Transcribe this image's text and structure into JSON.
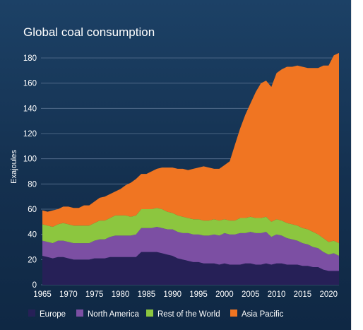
{
  "chart_data": {
    "type": "area",
    "stacked": true,
    "title": "Global coal consumption",
    "ylabel": "Exajoules",
    "xlabel": "",
    "ylim": [
      0,
      180
    ],
    "y_ticks": [
      0,
      20,
      40,
      60,
      80,
      100,
      120,
      140,
      160,
      180
    ],
    "x_ticks": [
      1965,
      1970,
      1975,
      1980,
      1985,
      1990,
      1995,
      2000,
      2005,
      2010,
      2015,
      2020
    ],
    "grid": "horizontal",
    "legend_position": "bottom",
    "x": [
      1965,
      1966,
      1967,
      1968,
      1969,
      1970,
      1971,
      1972,
      1973,
      1974,
      1975,
      1976,
      1977,
      1978,
      1979,
      1980,
      1981,
      1982,
      1983,
      1984,
      1985,
      1986,
      1987,
      1988,
      1989,
      1990,
      1991,
      1992,
      1993,
      1994,
      1995,
      1996,
      1997,
      1998,
      1999,
      2000,
      2001,
      2002,
      2003,
      2004,
      2005,
      2006,
      2007,
      2008,
      2009,
      2010,
      2011,
      2012,
      2013,
      2014,
      2015,
      2016,
      2017,
      2018,
      2019,
      2020,
      2021,
      2022
    ],
    "series": [
      {
        "name": "Europe",
        "color": "#262057",
        "values": [
          23,
          22,
          21,
          22,
          22,
          21,
          20,
          20,
          20,
          20,
          21,
          21,
          21,
          22,
          22,
          22,
          22,
          22,
          22,
          26,
          26,
          26,
          26,
          25,
          24,
          23,
          21,
          20,
          19,
          18,
          18,
          17,
          17,
          17,
          16,
          17,
          16,
          16,
          16,
          17,
          17,
          16,
          16,
          17,
          16,
          17,
          17,
          16,
          16,
          16,
          15,
          15,
          14,
          14,
          12,
          11,
          11,
          11
        ]
      },
      {
        "name": "North America",
        "color": "#7c4fa3",
        "values": [
          12,
          12,
          12,
          13,
          13,
          13,
          13,
          13,
          13,
          13,
          14,
          15,
          15,
          16,
          17,
          17,
          17,
          17,
          18,
          19,
          19,
          19,
          20,
          20,
          20,
          21,
          21,
          21,
          22,
          22,
          22,
          22,
          22,
          23,
          23,
          24,
          24,
          24,
          25,
          24,
          25,
          25,
          25,
          25,
          22,
          23,
          22,
          21,
          20,
          19,
          18,
          17,
          16,
          15,
          14,
          13,
          14,
          12
        ]
      },
      {
        "name": "Rest of the World",
        "color": "#8cc63f",
        "values": [
          13,
          13,
          13,
          13,
          14,
          14,
          14,
          14,
          14,
          14,
          14,
          15,
          15,
          15,
          16,
          16,
          16,
          15,
          15,
          15,
          15,
          15,
          15,
          15,
          14,
          13,
          13,
          13,
          12,
          12,
          12,
          12,
          12,
          12,
          12,
          11,
          11,
          11,
          12,
          12,
          12,
          12,
          12,
          12,
          12,
          12,
          12,
          12,
          12,
          12,
          12,
          12,
          12,
          11,
          11,
          10,
          10,
          10
        ]
      },
      {
        "name": "Asia Pacific",
        "color": "#f07522",
        "values": [
          11,
          11,
          13,
          12,
          13,
          14,
          14,
          14,
          16,
          16,
          17,
          18,
          19,
          19,
          19,
          21,
          24,
          27,
          29,
          28,
          28,
          30,
          31,
          33,
          35,
          36,
          37,
          38,
          38,
          40,
          41,
          43,
          42,
          40,
          41,
          43,
          47,
          60,
          71,
          82,
          90,
          100,
          107,
          108,
          107,
          116,
          120,
          124,
          125,
          127,
          128,
          128,
          130,
          132,
          137,
          140,
          147,
          151
        ]
      }
    ]
  }
}
